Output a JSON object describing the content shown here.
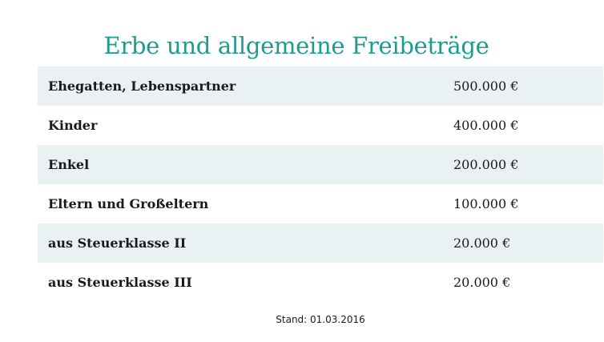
{
  "title": "Erbe und allgemeine Freibeträge",
  "rows": [
    {
      "label": "Ehegatten, Lebenspartner",
      "value": "500.000 €"
    },
    {
      "label": "Kinder",
      "value": "400.000 €"
    },
    {
      "label": "Enkel",
      "value": "200.000 €"
    },
    {
      "label": "Eltern und Großeltern",
      "value": "100.000 €"
    },
    {
      "label": "aus Steuerklasse II",
      "value": "20.000 €"
    },
    {
      "label": "aus Steuerklasse III",
      "value": "20.000 €"
    }
  ],
  "footnote": "Stand: 01.03.2016",
  "colors": {
    "title": "#1f9a8f",
    "row_shade": "#e9f1f2"
  }
}
